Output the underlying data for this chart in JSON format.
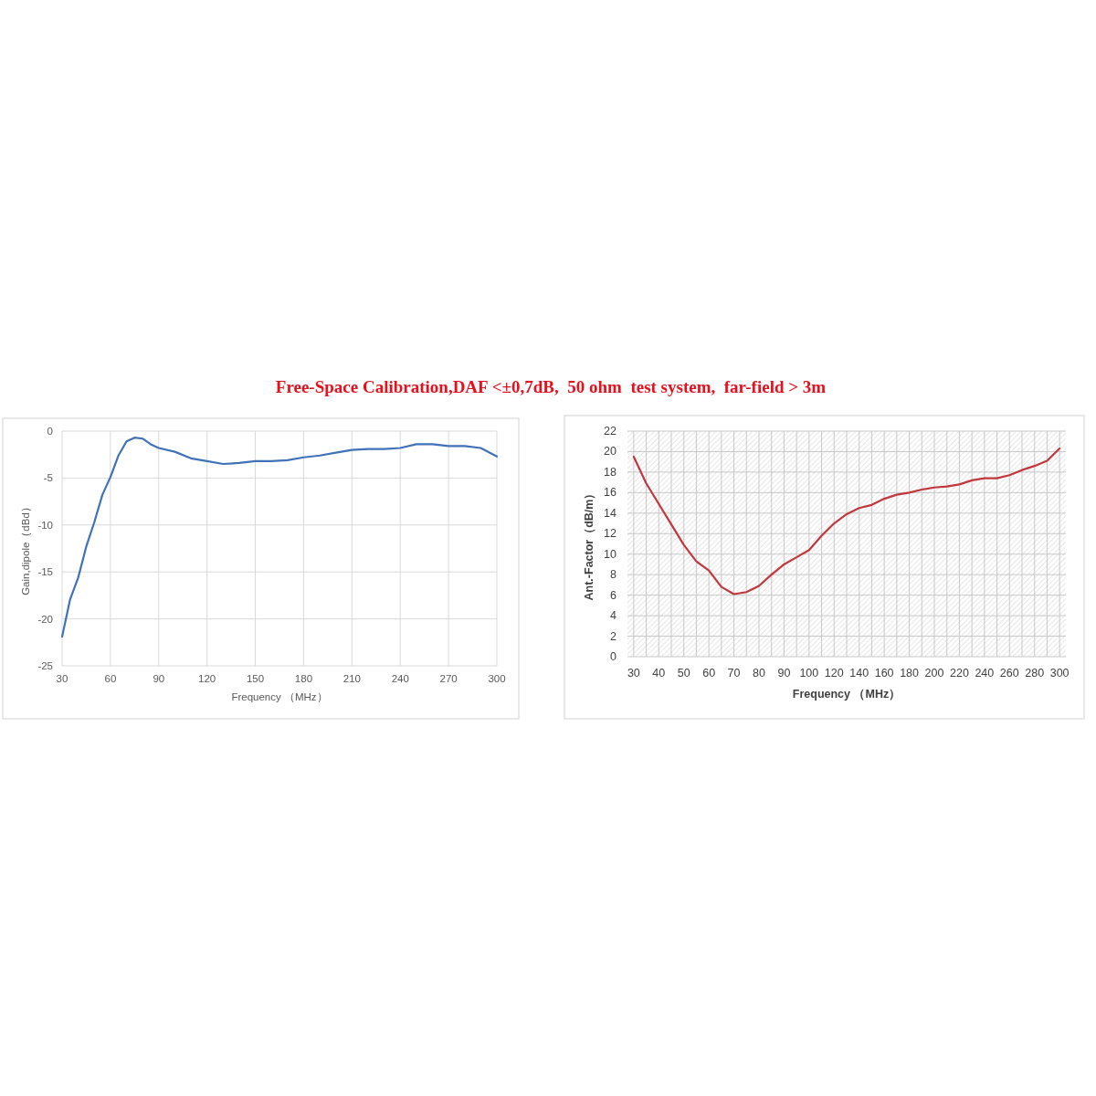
{
  "chart_data": [
    {
      "type": "line",
      "title": "Free-Space Calibration,DAF <±0,7dB,  50 ohm  test system,  far-field > 3m",
      "xlabel": "Frequency （MHz）",
      "ylabel": "Gain,dipole（dBd）",
      "x": [
        30,
        35,
        40,
        45,
        50,
        55,
        60,
        65,
        70,
        75,
        80,
        85,
        90,
        100,
        110,
        120,
        130,
        140,
        150,
        160,
        170,
        180,
        190,
        200,
        210,
        220,
        230,
        240,
        250,
        260,
        270,
        280,
        290,
        300
      ],
      "series": [
        {
          "color": "#3f72b8",
          "values": [
            -21.9,
            -17.9,
            -15.6,
            -12.3,
            -9.7,
            -6.8,
            -4.9,
            -2.6,
            -1.1,
            -0.7,
            -0.8,
            -1.4,
            -1.8,
            -2.2,
            -2.9,
            -3.2,
            -3.5,
            -3.4,
            -3.2,
            -3.2,
            -3.1,
            -2.8,
            -2.6,
            -2.3,
            -2.0,
            -1.9,
            -1.9,
            -1.8,
            -1.4,
            -1.4,
            -1.6,
            -1.6,
            -1.8,
            -2.7
          ]
        }
      ],
      "xlim": [
        30,
        300
      ],
      "ylim": [
        -25,
        0
      ],
      "xticks": [
        30,
        60,
        90,
        120,
        150,
        180,
        210,
        240,
        270,
        300
      ],
      "yticks": [
        -25,
        -20,
        -15,
        -10,
        -5,
        0
      ],
      "grid": true
    },
    {
      "type": "line",
      "xlabel": "Frequency （MHz）",
      "ylabel": "Ant.-Factor（dB/m）",
      "categories": [
        "30",
        null,
        "40",
        null,
        "50",
        null,
        "60",
        null,
        "70",
        null,
        "80",
        null,
        "90",
        null,
        "100",
        null,
        "120",
        null,
        "140",
        null,
        "160",
        null,
        "180",
        null,
        "200",
        null,
        "220",
        null,
        "240",
        null,
        "260",
        null,
        "280",
        null,
        "300"
      ],
      "series": [
        {
          "color": "#c0383c",
          "values": [
            19.5,
            16.9,
            14.9,
            12.9,
            10.9,
            9.3,
            8.4,
            6.8,
            6.1,
            6.3,
            6.9,
            8.0,
            9.0,
            9.7,
            10.4,
            11.8,
            13.0,
            13.9,
            14.5,
            14.8,
            15.4,
            15.8,
            16.0,
            16.3,
            16.5,
            16.6,
            16.8,
            17.2,
            17.4,
            17.4,
            17.7,
            18.2,
            18.6,
            19.1,
            20.3
          ]
        }
      ],
      "ylim": [
        0,
        22
      ],
      "yticks": [
        0,
        2,
        4,
        6,
        8,
        10,
        12,
        14,
        16,
        18,
        20,
        22
      ],
      "grid": true
    }
  ]
}
